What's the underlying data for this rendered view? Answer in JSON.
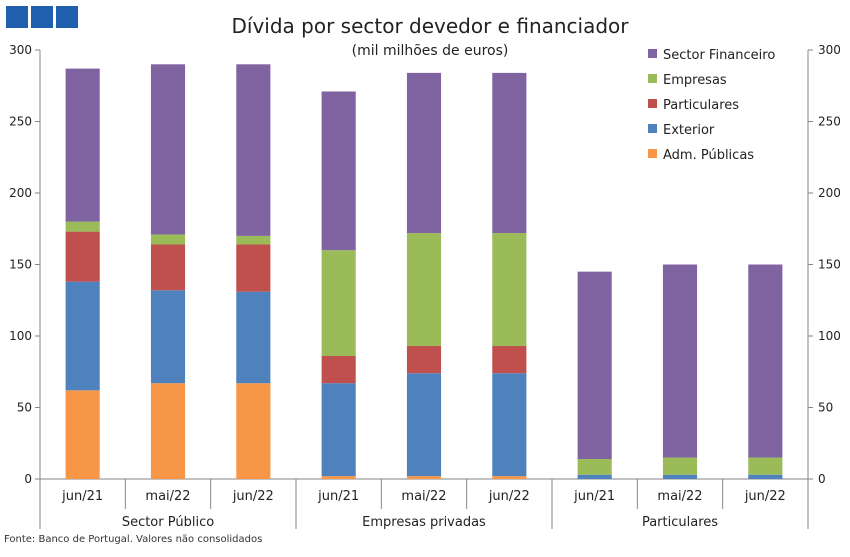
{
  "chart_data": {
    "type": "bar",
    "stacked": true,
    "title": "Dívida por sector devedor e financiador",
    "subtitle": "(mil milhões de euros)",
    "ylim": [
      0,
      300
    ],
    "yticks": [
      0,
      50,
      100,
      150,
      200,
      250,
      300
    ],
    "grid": false,
    "legend_position": "top-right",
    "groups": [
      {
        "name": "Sector Público",
        "categories": [
          "jun/21",
          "mai/22",
          "jun/22"
        ]
      },
      {
        "name": "Empresas privadas",
        "categories": [
          "jun/21",
          "mai/22",
          "jun/22"
        ]
      },
      {
        "name": "Particulares",
        "categories": [
          "jun/21",
          "mai/22",
          "jun/22"
        ]
      }
    ],
    "series": [
      {
        "name": "Adm. Públicas",
        "color": "#f79646",
        "values": [
          62,
          67,
          67,
          2,
          2,
          2,
          0,
          0,
          0
        ]
      },
      {
        "name": "Exterior",
        "color": "#4f81bd",
        "values": [
          76,
          65,
          64,
          65,
          72,
          72,
          3,
          3,
          3
        ]
      },
      {
        "name": "Particulares",
        "color": "#c0504d",
        "values": [
          35,
          32,
          33,
          19,
          19,
          19,
          0,
          0,
          0
        ]
      },
      {
        "name": "Empresas",
        "color": "#9bbb59",
        "values": [
          7,
          7,
          6,
          74,
          79,
          79,
          11,
          12,
          12
        ]
      },
      {
        "name": "Sector Financeiro",
        "color": "#8064a2",
        "values": [
          107,
          119,
          120,
          111,
          112,
          112,
          131,
          135,
          135
        ]
      }
    ],
    "legend_order": [
      "Sector Financeiro",
      "Empresas",
      "Particulares",
      "Exterior",
      "Adm. Públicas"
    ]
  },
  "source_note": "Fonte: Banco de Portugal. Valores não consolidados",
  "colors": {
    "logo": "#1f5fae",
    "axis": "#868686"
  }
}
